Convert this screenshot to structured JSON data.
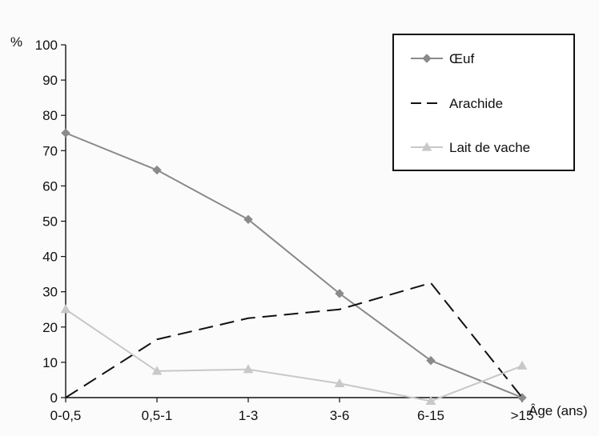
{
  "chart_data": {
    "type": "line",
    "title": "",
    "ylabel": "%",
    "xlabel": "Âge (ans)",
    "ylim": [
      0,
      100
    ],
    "yticks": [
      0,
      10,
      20,
      30,
      40,
      50,
      60,
      70,
      80,
      90,
      100
    ],
    "grid": false,
    "legend_placement": "top-right",
    "categories": [
      "0-0,5",
      "0,5-1",
      "1-3",
      "3-6",
      "6-15",
      ">15"
    ],
    "series": [
      {
        "name": "Œuf",
        "values": [
          75,
          64.5,
          50.5,
          29.5,
          10.5,
          0
        ],
        "color": "#8a8a8a",
        "line_style": "solid",
        "marker": "diamond"
      },
      {
        "name": "Arachide",
        "values": [
          0,
          16.5,
          22.5,
          25,
          32.5,
          0
        ],
        "color": "#111111",
        "line_style": "dashed",
        "marker": "none"
      },
      {
        "name": "Lait de vache",
        "values": [
          25,
          7.5,
          8,
          4,
          -1,
          9
        ],
        "color": "#c8c8c8",
        "line_style": "solid",
        "marker": "triangle"
      }
    ]
  }
}
